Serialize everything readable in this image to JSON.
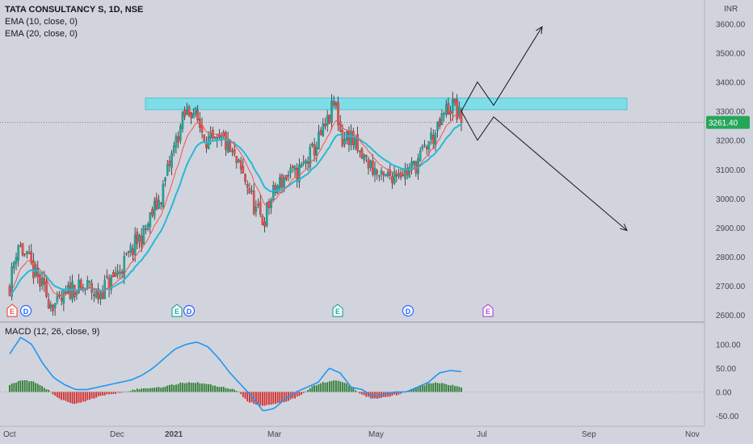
{
  "header": {
    "title": "TATA CONSULTANCY S, 1D, NSE",
    "indicators": [
      "EMA (10, close, 0)",
      "EMA (20, close, 0)"
    ],
    "macd_label": "MACD (12, 26, close, 9)"
  },
  "currency_label": "INR",
  "last_price_label": "3261.40",
  "colors": {
    "background": "#d1d4dc",
    "up": "#26a69a",
    "down": "#ef5350",
    "ema10": "#f05350",
    "ema20": "#26b9d7",
    "zone": "#7fdde8",
    "price_badge": "#26a65b",
    "macd_line": "#2196f3",
    "hist_up": "#2e7d32",
    "hist_down": "#d32f2f"
  },
  "chart_data": [
    {
      "type": "candlestick",
      "title": "TATA CONSULTANCY S, 1D, NSE",
      "series": [
        {
          "name": "EMA (10, close, 0)"
        },
        {
          "name": "EMA (20, close, 0)"
        }
      ],
      "xlabel": "",
      "ylabel": "INR",
      "x_tick_labels": [
        "Oct",
        "Dec",
        "2021",
        "Mar",
        "May",
        "Jul",
        "Sep",
        "Nov"
      ],
      "y_tick_labels": [
        "2600.00",
        "2700.00",
        "2800.00",
        "2900.00",
        "3000.00",
        "3100.00",
        "3200.00",
        "3300.00",
        "3400.00",
        "3500.00",
        "3600.00"
      ],
      "ylim": [
        2580,
        3660
      ],
      "last_price": 3261.4,
      "resistance_zone": [
        3305,
        3345
      ],
      "event_markers": [
        "E",
        "D",
        "E",
        "D",
        "E",
        "D",
        "E"
      ],
      "close_path": [
        2700,
        2850,
        2800,
        2750,
        2700,
        2650,
        2630,
        2660,
        2700,
        2680,
        2700,
        2660,
        2700,
        2720,
        2760,
        2800,
        2850,
        2880,
        2950,
        3000,
        3100,
        3200,
        3280,
        3310,
        3250,
        3200,
        3180,
        3200,
        3150,
        3100,
        3050,
        2960,
        2920,
        3000,
        3050,
        3080,
        3080,
        3110,
        3150,
        3200,
        3250,
        3330,
        3200,
        3220,
        3150,
        3130,
        3100,
        3060,
        3080,
        3100,
        3090,
        3110,
        3150,
        3200,
        3230,
        3300,
        3320,
        3265
      ],
      "projections": [
        {
          "name": "bullish",
          "path": [
            3300,
            3400,
            3320,
            3590
          ]
        },
        {
          "name": "bearish",
          "path": [
            3300,
            3200,
            3280,
            2890
          ]
        }
      ]
    },
    {
      "type": "bar",
      "title": "MACD (12, 26, close, 9)",
      "y_tick_labels": [
        "-50.00",
        "0.00",
        "50.00",
        "100.00"
      ],
      "ylim": [
        -65,
        125
      ],
      "macd_path": [
        80,
        115,
        100,
        60,
        30,
        15,
        5,
        5,
        10,
        15,
        20,
        25,
        35,
        50,
        70,
        90,
        100,
        105,
        95,
        70,
        40,
        15,
        -10,
        -40,
        -35,
        -15,
        0,
        10,
        20,
        50,
        40,
        10,
        5,
        -10,
        -5,
        0,
        0,
        10,
        20,
        40,
        45,
        43
      ],
      "histogram_path": [
        15,
        25,
        20,
        5,
        -15,
        -25,
        -20,
        -10,
        -5,
        0,
        5,
        8,
        10,
        15,
        20,
        20,
        15,
        10,
        5,
        -20,
        -30,
        -25,
        -20,
        -10,
        10,
        20,
        25,
        15,
        -5,
        -15,
        -10,
        -5,
        5,
        15,
        20,
        15,
        10
      ]
    }
  ]
}
